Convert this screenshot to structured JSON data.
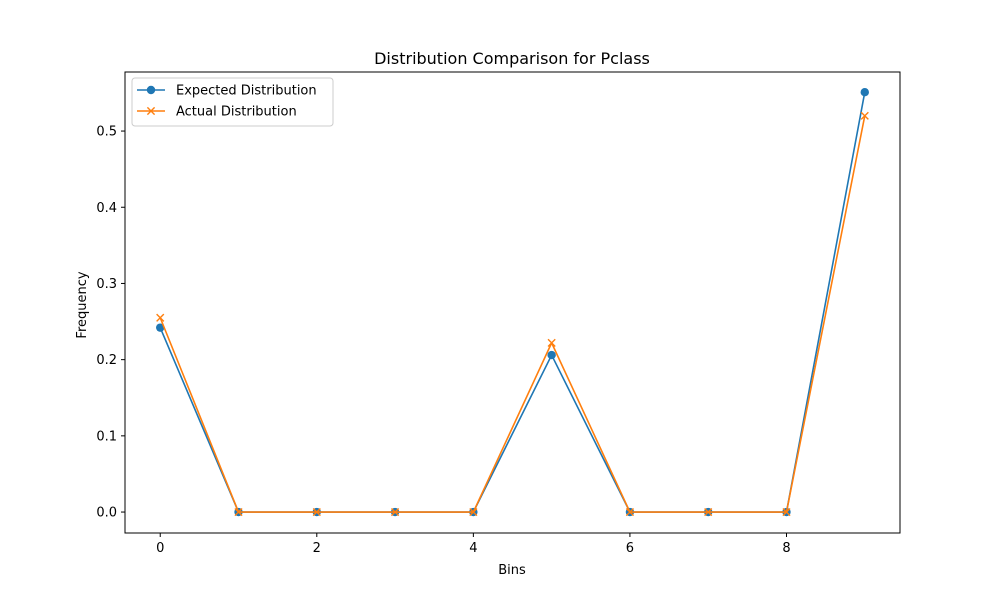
{
  "chart_data": {
    "type": "line",
    "title": "Distribution Comparison for Pclass",
    "xlabel": "Bins",
    "ylabel": "Frequency",
    "x": [
      0,
      1,
      2,
      3,
      4,
      5,
      6,
      7,
      8,
      9
    ],
    "xlim": [
      -0.45,
      9.45
    ],
    "ylim": [
      -0.0275,
      0.5775
    ],
    "xticks": [
      0,
      2,
      4,
      6,
      8
    ],
    "yticks": [
      0.0,
      0.1,
      0.2,
      0.3,
      0.4,
      0.5
    ],
    "ytick_labels": [
      "0.0",
      "0.1",
      "0.2",
      "0.3",
      "0.4",
      "0.5"
    ],
    "xtick_labels": [
      "0",
      "2",
      "4",
      "6",
      "8"
    ],
    "grid": false,
    "legend_position": "top-left",
    "series": [
      {
        "name": "Expected Distribution",
        "marker": "circle",
        "color": "#1f77b4",
        "values": [
          0.242,
          0.0,
          0.0,
          0.0,
          0.0,
          0.206,
          0.0,
          0.0,
          0.0,
          0.551
        ]
      },
      {
        "name": "Actual Distribution",
        "marker": "x",
        "color": "#ff7f0e",
        "values": [
          0.255,
          0.0,
          0.0,
          0.0,
          0.0,
          0.222,
          0.0,
          0.0,
          0.0,
          0.52
        ]
      }
    ]
  }
}
